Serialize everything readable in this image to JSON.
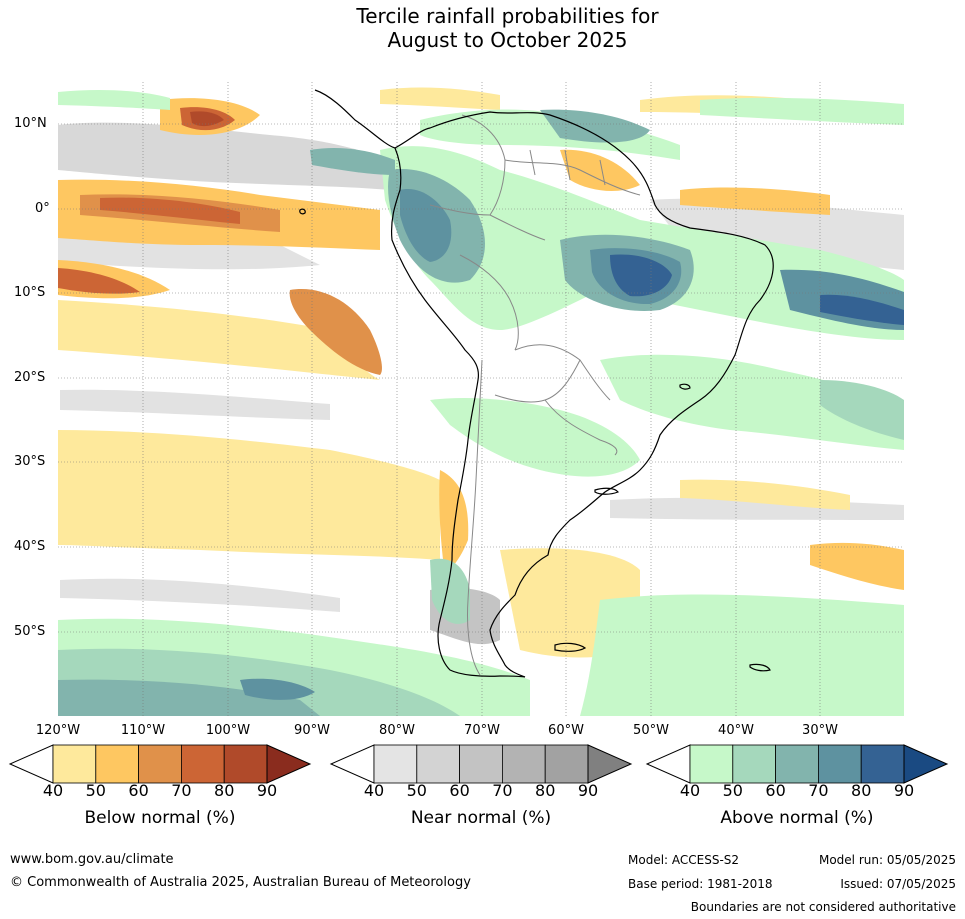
{
  "title_line1": "Tercile rainfall probabilities for",
  "title_line2": "August to October 2025",
  "lat_labels": [
    "10°N",
    "0°",
    "10°S",
    "20°S",
    "30°S",
    "40°S",
    "50°S"
  ],
  "lon_labels": [
    "120°W",
    "110°W",
    "100°W",
    "90°W",
    "80°W",
    "70°W",
    "60°W",
    "50°W",
    "40°W",
    "30°W"
  ],
  "colorbars": [
    {
      "title": "Below normal (%)",
      "ticks": [
        "40",
        "50",
        "60",
        "70",
        "80",
        "90"
      ],
      "colors": [
        "#fee99c",
        "#fec761",
        "#e0914a",
        "#cc6535",
        "#b04a2a",
        "#8a2c1e"
      ]
    },
    {
      "title": "Near normal (%)",
      "ticks": [
        "40",
        "50",
        "60",
        "70",
        "80",
        "90"
      ],
      "colors": [
        "#e4e4e4",
        "#d3d3d3",
        "#c3c3c3",
        "#b3b3b3",
        "#a2a2a2",
        "#808080"
      ]
    },
    {
      "title": "Above normal (%)",
      "ticks": [
        "40",
        "50",
        "60",
        "70",
        "80",
        "90"
      ],
      "colors": [
        "#c6f8c9",
        "#a5d8bc",
        "#82b4ad",
        "#5e92a0",
        "#346293",
        "#1a4a82"
      ]
    }
  ],
  "footer": {
    "website": "www.bom.gov.au/climate",
    "copyright": "© Commonwealth of Australia 2025, Australian Bureau of Meteorology",
    "model": "Model: ACCESS-S2",
    "model_run": "Model run: 05/05/2025",
    "base_period": "Base period: 1981-2018",
    "issued": "Issued: 07/05/2025",
    "boundaries_note": "Boundaries are not considered authoritative"
  }
}
